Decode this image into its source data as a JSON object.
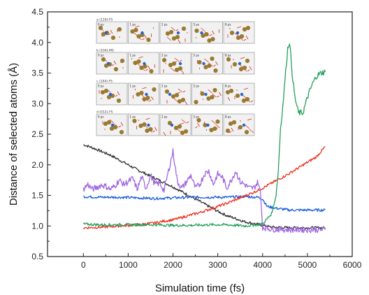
{
  "chart_data": {
    "type": "line",
    "title": "",
    "xlabel": "Simulation time (fs)",
    "ylabel": "Distance of selected atoms (Å)",
    "xlim": [
      -800,
      6000
    ],
    "ylim": [
      0.5,
      4.5
    ],
    "xticks": [
      "0",
      "1000",
      "2000",
      "3000",
      "4000",
      "5000",
      "6000"
    ],
    "yticks": [
      "0.5",
      "1.0",
      "1.5",
      "2.0",
      "2.5",
      "3.0",
      "3.5",
      "4.0",
      "4.5"
    ],
    "grid": false,
    "legend": "none",
    "series": [
      {
        "color": "#333333",
        "points": [
          [
            0,
            2.33
          ],
          [
            200,
            2.28
          ],
          [
            400,
            2.22
          ],
          [
            600,
            2.16
          ],
          [
            800,
            2.08
          ],
          [
            1000,
            2.0
          ],
          [
            1200,
            1.92
          ],
          [
            1400,
            1.85
          ],
          [
            1600,
            1.78
          ],
          [
            1800,
            1.71
          ],
          [
            2000,
            1.64
          ],
          [
            2200,
            1.56
          ],
          [
            2400,
            1.48
          ],
          [
            2600,
            1.4
          ],
          [
            2800,
            1.32
          ],
          [
            3000,
            1.24
          ],
          [
            3200,
            1.17
          ],
          [
            3400,
            1.12
          ],
          [
            3600,
            1.07
          ],
          [
            3800,
            1.04
          ],
          [
            4000,
            1.01
          ],
          [
            4200,
            0.98
          ],
          [
            4600,
            0.97
          ],
          [
            5000,
            0.97
          ],
          [
            5400,
            0.97
          ]
        ]
      },
      {
        "color": "#1f5fdc",
        "points": [
          [
            0,
            1.48
          ],
          [
            400,
            1.47
          ],
          [
            800,
            1.47
          ],
          [
            1200,
            1.46
          ],
          [
            1600,
            1.45
          ],
          [
            2000,
            1.46
          ],
          [
            2400,
            1.47
          ],
          [
            2800,
            1.47
          ],
          [
            3200,
            1.47
          ],
          [
            3600,
            1.48
          ],
          [
            3900,
            1.47
          ],
          [
            4000,
            1.44
          ],
          [
            4100,
            1.32
          ],
          [
            4300,
            1.29
          ],
          [
            4600,
            1.26
          ],
          [
            5000,
            1.26
          ],
          [
            5400,
            1.26
          ]
        ]
      },
      {
        "color": "#ee3322",
        "points": [
          [
            0,
            0.97
          ],
          [
            400,
            0.98
          ],
          [
            800,
            1.0
          ],
          [
            1200,
            1.02
          ],
          [
            1600,
            1.05
          ],
          [
            1800,
            1.08
          ],
          [
            2000,
            1.1
          ],
          [
            2200,
            1.14
          ],
          [
            2400,
            1.18
          ],
          [
            2600,
            1.22
          ],
          [
            2800,
            1.27
          ],
          [
            3000,
            1.32
          ],
          [
            3200,
            1.37
          ],
          [
            3400,
            1.43
          ],
          [
            3600,
            1.49
          ],
          [
            3800,
            1.55
          ],
          [
            4000,
            1.62
          ],
          [
            4200,
            1.7
          ],
          [
            4400,
            1.78
          ],
          [
            4600,
            1.86
          ],
          [
            4800,
            1.95
          ],
          [
            5000,
            2.04
          ],
          [
            5200,
            2.13
          ],
          [
            5400,
            2.3
          ]
        ]
      },
      {
        "color": "#22a05a",
        "points": [
          [
            0,
            1.03
          ],
          [
            400,
            1.02
          ],
          [
            800,
            1.02
          ],
          [
            1200,
            1.02
          ],
          [
            1600,
            1.02
          ],
          [
            2000,
            1.01
          ],
          [
            2400,
            1.01
          ],
          [
            2800,
            1.02
          ],
          [
            3200,
            1.02
          ],
          [
            3600,
            1.0
          ],
          [
            4000,
            1.03
          ],
          [
            4200,
            1.2
          ],
          [
            4300,
            1.5
          ],
          [
            4350,
            1.9
          ],
          [
            4400,
            2.6
          ],
          [
            4450,
            2.95
          ],
          [
            4500,
            3.4
          ],
          [
            4560,
            3.9
          ],
          [
            4600,
            4.02
          ],
          [
            4660,
            3.5
          ],
          [
            4720,
            3.1
          ],
          [
            4800,
            2.85
          ],
          [
            4900,
            2.85
          ],
          [
            5000,
            3.1
          ],
          [
            5100,
            3.3
          ],
          [
            5200,
            3.45
          ],
          [
            5300,
            3.5
          ],
          [
            5400,
            3.52
          ]
        ]
      },
      {
        "color": "#a066e0",
        "points": [
          [
            0,
            1.6
          ],
          [
            100,
            1.68
          ],
          [
            200,
            1.6
          ],
          [
            300,
            1.63
          ],
          [
            400,
            1.67
          ],
          [
            500,
            1.65
          ],
          [
            600,
            1.6
          ],
          [
            700,
            1.65
          ],
          [
            800,
            1.75
          ],
          [
            900,
            1.68
          ],
          [
            1000,
            1.72
          ],
          [
            1100,
            1.78
          ],
          [
            1200,
            1.6
          ],
          [
            1300,
            1.8
          ],
          [
            1400,
            1.62
          ],
          [
            1500,
            1.83
          ],
          [
            1600,
            1.68
          ],
          [
            1700,
            1.7
          ],
          [
            1800,
            1.58
          ],
          [
            1900,
            1.9
          ],
          [
            2000,
            2.22
          ],
          [
            2100,
            1.72
          ],
          [
            2200,
            1.62
          ],
          [
            2300,
            1.72
          ],
          [
            2400,
            1.83
          ],
          [
            2500,
            1.62
          ],
          [
            2600,
            1.68
          ],
          [
            2700,
            1.85
          ],
          [
            2800,
            1.9
          ],
          [
            2900,
            1.68
          ],
          [
            3000,
            1.85
          ],
          [
            3100,
            1.8
          ],
          [
            3200,
            1.62
          ],
          [
            3300,
            1.75
          ],
          [
            3400,
            1.9
          ],
          [
            3500,
            1.72
          ],
          [
            3600,
            1.68
          ],
          [
            3700,
            1.62
          ],
          [
            3800,
            1.62
          ],
          [
            3900,
            1.72
          ],
          [
            3950,
            1.55
          ],
          [
            4000,
            0.98
          ],
          [
            4200,
            0.95
          ],
          [
            4600,
            0.94
          ],
          [
            5000,
            0.94
          ],
          [
            5400,
            0.94
          ]
        ]
      }
    ],
    "inset_panels": [
      {
        "label": "a    (110)-FS",
        "frames": [
          "0 ps",
          "1 ps",
          "2 ps",
          "5 ps",
          "8 ps"
        ]
      },
      {
        "label": "b    (104)-MS",
        "frames": [
          "0 ps",
          "1 ps",
          "2 ps",
          "5 ps",
          "8 ps"
        ]
      },
      {
        "label": "c    (104)-FS",
        "frames": [
          "0 ps",
          "1 ps",
          "2 ps",
          "5 ps",
          "8 ps"
        ]
      },
      {
        "label": "d    (012)-FS",
        "frames": [
          "0 ps",
          "1 ps",
          "2 ps",
          "5 ps",
          "8 ps"
        ]
      }
    ]
  }
}
